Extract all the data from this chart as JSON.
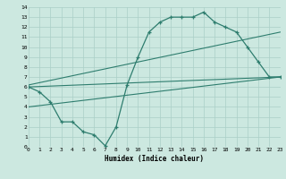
{
  "line1_x": [
    0,
    1,
    2,
    3,
    4,
    5,
    6,
    7,
    8,
    9,
    10,
    11,
    12,
    13,
    14,
    15,
    16,
    17,
    18,
    19,
    20,
    21,
    22,
    23
  ],
  "line1_y": [
    6,
    5.5,
    4.5,
    2.5,
    2.5,
    1.5,
    1.2,
    0.1,
    2.0,
    6.2,
    9.0,
    11.5,
    12.5,
    13.0,
    13.0,
    13.0,
    13.5,
    12.5,
    12.0,
    11.5,
    10.0,
    8.5,
    7.0,
    7.0
  ],
  "line2_x": [
    0,
    23
  ],
  "line2_y": [
    6.0,
    7.0
  ],
  "line3_x": [
    0,
    23
  ],
  "line3_y": [
    6.2,
    11.5
  ],
  "line4_x": [
    0,
    23
  ],
  "line4_y": [
    4.0,
    7.0
  ],
  "line_color": "#2e7d6e",
  "bg_color": "#cce8e0",
  "grid_color": "#aacfc7",
  "xlabel": "Humidex (Indice chaleur)",
  "xlim": [
    0,
    23
  ],
  "ylim": [
    0,
    14
  ],
  "xticks": [
    0,
    1,
    2,
    3,
    4,
    5,
    6,
    7,
    8,
    9,
    10,
    11,
    12,
    13,
    14,
    15,
    16,
    17,
    18,
    19,
    20,
    21,
    22,
    23
  ],
  "yticks": [
    0,
    1,
    2,
    3,
    4,
    5,
    6,
    7,
    8,
    9,
    10,
    11,
    12,
    13,
    14
  ]
}
